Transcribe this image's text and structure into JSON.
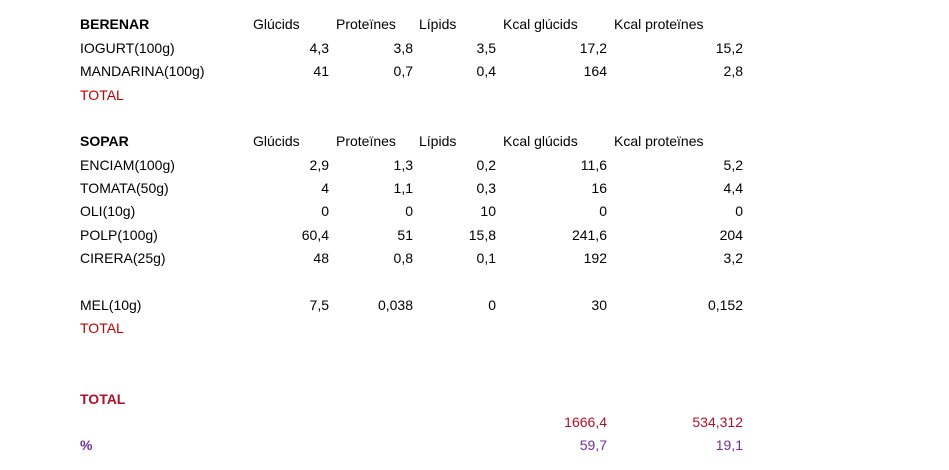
{
  "headers": [
    "Glúcids",
    "Proteïnes",
    "Lípids",
    "Kcal glúcids",
    "Kcal proteïnes"
  ],
  "berenar": {
    "title": "BERENAR",
    "rows": [
      {
        "name": "IOGURT(100g)",
        "glucids": "4,3",
        "proteines": "3,8",
        "lipids": "3,5",
        "kcal_glucids": "17,2",
        "kcal_proteines": "15,2"
      },
      {
        "name": "MANDARINA(100g)",
        "glucids": "41",
        "proteines": "0,7",
        "lipids": "0,4",
        "kcal_glucids": "164",
        "kcal_proteines": "2,8"
      }
    ],
    "total_label": "TOTAL"
  },
  "sopar": {
    "title": "SOPAR",
    "rows": [
      {
        "name": "ENCIAM(100g)",
        "glucids": "2,9",
        "proteines": "1,3",
        "lipids": "0,2",
        "kcal_glucids": "11,6",
        "kcal_proteines": "5,2"
      },
      {
        "name": "TOMATA(50g)",
        "glucids": "4",
        "proteines": "1,1",
        "lipids": "0,3",
        "kcal_glucids": "16",
        "kcal_proteines": "4,4"
      },
      {
        "name": "OLI(10g)",
        "glucids": "0",
        "proteines": "0",
        "lipids": "10",
        "kcal_glucids": "0",
        "kcal_proteines": "0"
      },
      {
        "name": "POLP(100g)",
        "glucids": "60,4",
        "proteines": "51",
        "lipids": "15,8",
        "kcal_glucids": "241,6",
        "kcal_proteines": "204"
      },
      {
        "name": "CIRERA(25g)",
        "glucids": "48",
        "proteines": "0,8",
        "lipids": "0,1",
        "kcal_glucids": "192",
        "kcal_proteines": "3,2"
      }
    ],
    "extra_row": {
      "name": "MEL(10g)",
      "glucids": "7,5",
      "proteines": "0,038",
      "lipids": "0",
      "kcal_glucids": "30",
      "kcal_proteines": "0,152"
    },
    "total_label": "TOTAL"
  },
  "grand_total": {
    "label": "TOTAL",
    "kcal_glucids": "1666,4",
    "kcal_proteines": "534,312"
  },
  "percent": {
    "label": "%",
    "kcal_glucids": "59,7",
    "kcal_proteines": "19,1"
  },
  "colors": {
    "total_label": "#c00000",
    "grand_total": "#b0102a",
    "percent": "#7030a0"
  }
}
